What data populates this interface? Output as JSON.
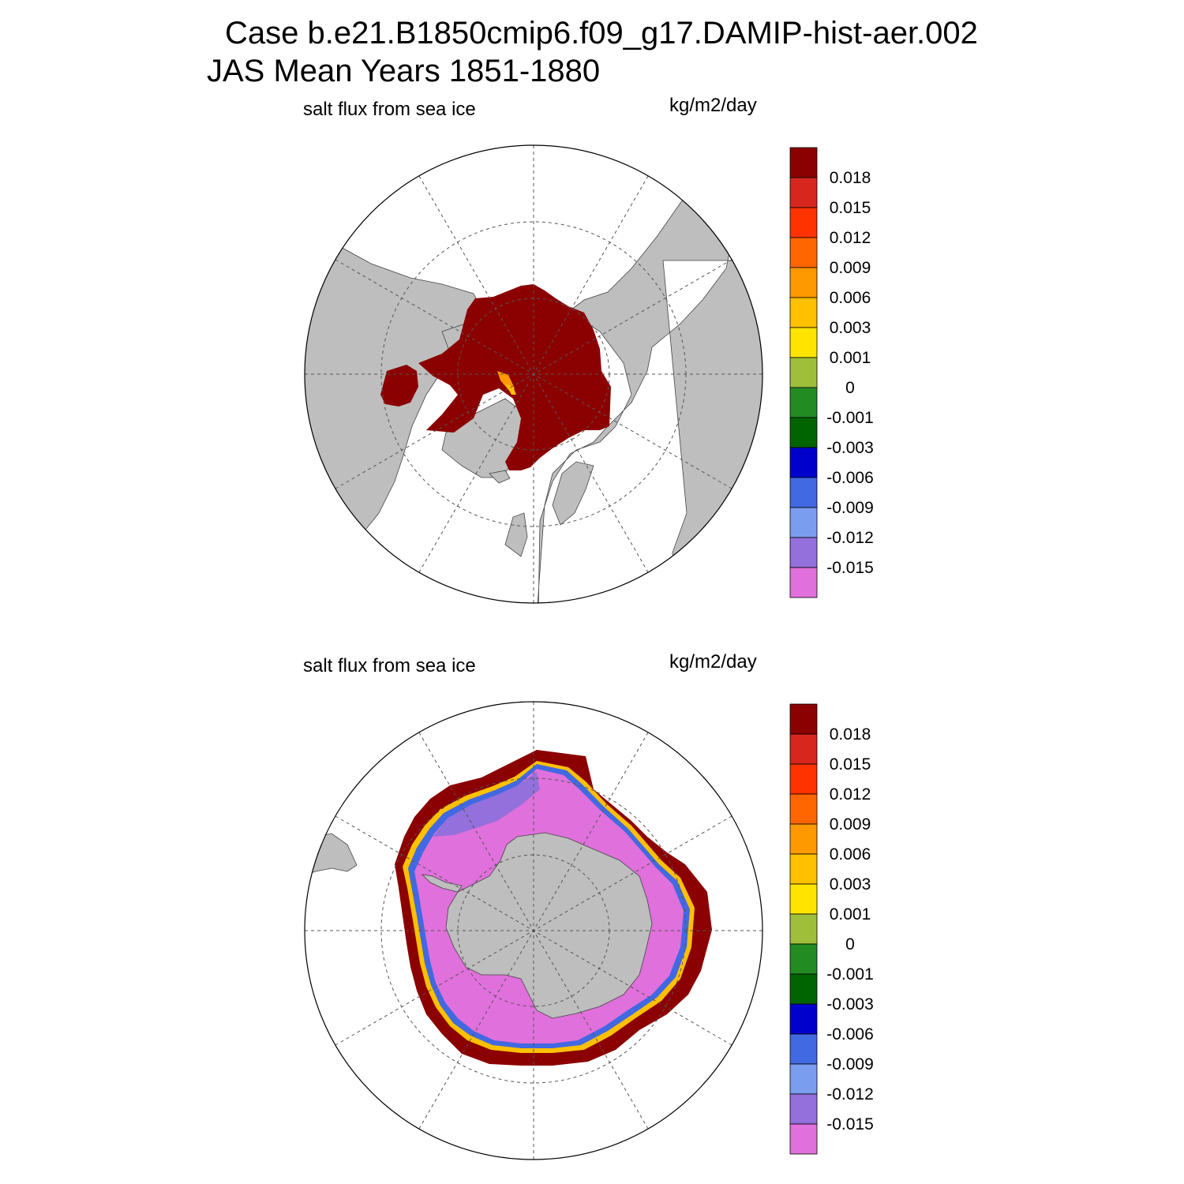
{
  "title": {
    "line1": "Case b.e21.B1850cmip6.f09_g17.DAMIP-hist-aer.002",
    "line2": "JAS Mean   Years 1851-1880"
  },
  "panels": [
    {
      "hemisphere": "north",
      "variable_label": "salt flux from sea ice",
      "units_label": "kg/m2/day"
    },
    {
      "hemisphere": "south",
      "variable_label": "salt flux from sea ice",
      "units_label": "kg/m2/day"
    }
  ],
  "colorbar": {
    "labels": [
      "0.018",
      "0.015",
      "0.012",
      "0.009",
      "0.006",
      "0.003",
      "0.001",
      "0",
      "-0.001",
      "-0.003",
      "-0.006",
      "-0.009",
      "-0.012",
      "-0.015"
    ],
    "colors": [
      "#8b0000",
      "#d7261e",
      "#ff3300",
      "#ff6600",
      "#ff9900",
      "#ffc000",
      "#ffe400",
      "#9fbf3b",
      "#228b22",
      "#006400",
      "#0000cd",
      "#4169e1",
      "#7b9df0",
      "#9370db",
      "#e070db"
    ]
  },
  "map_colors": {
    "land": "#bebebe",
    "ocean": "#ffffff",
    "grid": "#555555"
  }
}
